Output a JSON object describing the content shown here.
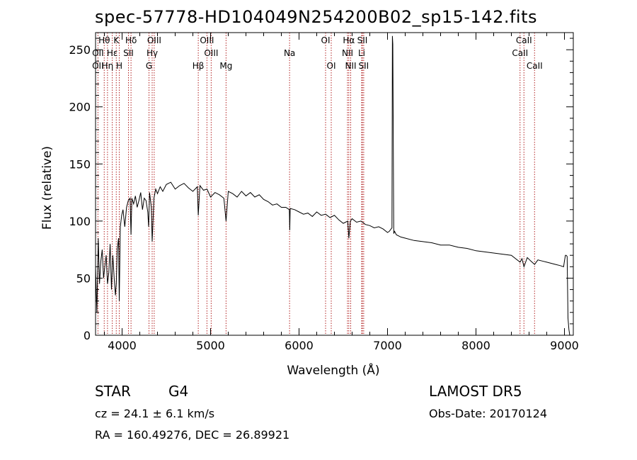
{
  "header": {
    "title": "spec-57778-HD104049N254200B02_sp15-142.fits"
  },
  "footer": {
    "object_class": "STAR",
    "subclass": "G4",
    "survey": "LAMOST DR5",
    "redshift": "cz = 24.1 ± 6.1 km/s",
    "obs_date": "Obs-Date: 20170124",
    "coords": "RA = 160.49276, DEC =  26.89921"
  },
  "chart_data": {
    "type": "line",
    "title": "spec-57778-HD104049N254200B02_sp15-142.fits",
    "xlabel": "Wavelength (Å)",
    "ylabel": "Flux (relative)",
    "xlim": [
      3700,
      9100
    ],
    "ylim": [
      0,
      265
    ],
    "xticks": [
      4000,
      5000,
      6000,
      7000,
      8000,
      9000
    ],
    "yticks": [
      0,
      50,
      100,
      150,
      200,
      250
    ],
    "grid": false,
    "series": [
      {
        "name": "",
        "x": [
          3700,
          3715,
          3730,
          3745,
          3760,
          3775,
          3790,
          3805,
          3820,
          3835,
          3850,
          3865,
          3880,
          3895,
          3910,
          3925,
          3934,
          3945,
          3960,
          3968,
          3980,
          3995,
          4010,
          4030,
          4050,
          4070,
          4090,
          4101,
          4110,
          4130,
          4150,
          4170,
          4190,
          4210,
          4230,
          4250,
          4270,
          4290,
          4300,
          4310,
          4330,
          4340,
          4360,
          4380,
          4400,
          4430,
          4460,
          4500,
          4550,
          4600,
          4650,
          4700,
          4750,
          4800,
          4850,
          4861,
          4880,
          4920,
          4960,
          5000,
          5050,
          5100,
          5150,
          5175,
          5200,
          5250,
          5300,
          5350,
          5400,
          5450,
          5500,
          5550,
          5600,
          5650,
          5700,
          5750,
          5800,
          5850,
          5890,
          5895,
          5900,
          5950,
          6000,
          6050,
          6100,
          6150,
          6200,
          6250,
          6300,
          6350,
          6400,
          6450,
          6500,
          6550,
          6563,
          6580,
          6600,
          6650,
          6700,
          6750,
          6800,
          6850,
          6900,
          6950,
          7000,
          7020,
          7040,
          7050,
          7055,
          7060,
          7070,
          7080,
          7100,
          7150,
          7200,
          7300,
          7400,
          7500,
          7600,
          7700,
          7800,
          7900,
          8000,
          8100,
          8200,
          8300,
          8400,
          8498,
          8520,
          8542,
          8580,
          8620,
          8662,
          8700,
          8750,
          8800,
          8850,
          8900,
          8950,
          8990,
          9000,
          9010,
          9020,
          9030,
          9040,
          9050,
          9060
        ],
        "y": [
          60,
          20,
          85,
          45,
          65,
          75,
          50,
          60,
          70,
          45,
          55,
          80,
          40,
          70,
          50,
          35,
          45,
          75,
          85,
          30,
          95,
          105,
          110,
          95,
          112,
          118,
          120,
          88,
          120,
          115,
          122,
          112,
          118,
          125,
          110,
          120,
          118,
          108,
          95,
          125,
          112,
          82,
          120,
          128,
          124,
          130,
          126,
          132,
          134,
          128,
          131,
          133,
          129,
          126,
          130,
          105,
          131,
          127,
          128,
          121,
          125,
          123,
          120,
          100,
          126,
          124,
          121,
          126,
          122,
          125,
          121,
          123,
          119,
          117,
          114,
          115,
          112,
          112,
          110,
          92,
          111,
          110,
          108,
          106,
          107,
          104,
          108,
          105,
          106,
          103,
          105,
          101,
          98,
          100,
          85,
          100,
          102,
          99,
          100,
          97,
          96,
          94,
          95,
          93,
          90,
          91,
          93,
          94,
          262,
          255,
          89,
          91,
          88,
          86,
          85,
          83,
          82,
          81,
          79,
          79,
          77,
          76,
          74,
          73,
          72,
          71,
          70,
          64,
          67,
          60,
          68,
          65,
          62,
          66,
          65,
          64,
          63,
          62,
          61,
          60,
          65,
          70,
          70,
          69,
          15,
          5,
          0
        ]
      }
    ],
    "lines": [
      {
        "label": "Hθ",
        "x": 3798,
        "row": 0
      },
      {
        "label": "OII",
        "x": 3727,
        "row": 1
      },
      {
        "label": "OII",
        "x": 3727,
        "row": 2
      },
      {
        "label": "Hη",
        "x": 3835,
        "row": 2
      },
      {
        "label": "Hε",
        "x": 3889,
        "row": 1
      },
      {
        "label": "K",
        "x": 3934,
        "row": 0
      },
      {
        "label": "H",
        "x": 3968,
        "row": 2
      },
      {
        "label": "SII",
        "x": 4072,
        "row": 1
      },
      {
        "label": "Hδ",
        "x": 4101,
        "row": 0
      },
      {
        "label": "OIII",
        "x": 4363,
        "row": 0
      },
      {
        "label": "Hγ",
        "x": 4340,
        "row": 1
      },
      {
        "label": "G",
        "x": 4304,
        "row": 2
      },
      {
        "label": "Hβ",
        "x": 4861,
        "row": 2
      },
      {
        "label": "OIII",
        "x": 4959,
        "row": 0
      },
      {
        "label": "OIII",
        "x": 5007,
        "row": 1
      },
      {
        "label": "Mg",
        "x": 5175,
        "row": 2
      },
      {
        "label": "Na",
        "x": 5893,
        "row": 1
      },
      {
        "label": "OI",
        "x": 6300,
        "row": 0
      },
      {
        "label": "OI",
        "x": 6364,
        "row": 2
      },
      {
        "label": "Hα",
        "x": 6563,
        "row": 0
      },
      {
        "label": "SII",
        "x": 6716,
        "row": 0
      },
      {
        "label": "NII",
        "x": 6548,
        "row": 1
      },
      {
        "label": "Li",
        "x": 6708,
        "row": 1
      },
      {
        "label": "NII",
        "x": 6584,
        "row": 2
      },
      {
        "label": "SII",
        "x": 6731,
        "row": 2
      },
      {
        "label": "CaII",
        "x": 8542,
        "row": 0
      },
      {
        "label": "CaII",
        "x": 8498,
        "row": 1
      },
      {
        "label": "CaII",
        "x": 8662,
        "row": 2
      }
    ],
    "line_positions": [
      3727,
      3798,
      3835,
      3889,
      3934,
      3968,
      4072,
      4101,
      4304,
      4340,
      4363,
      4861,
      4959,
      5007,
      5175,
      5893,
      6300,
      6364,
      6548,
      6563,
      6584,
      6708,
      6716,
      6731,
      8498,
      8542,
      8662
    ],
    "colors": {
      "spectrum": "#000000",
      "line_markers": "#b22222",
      "axes": "#000000"
    }
  }
}
